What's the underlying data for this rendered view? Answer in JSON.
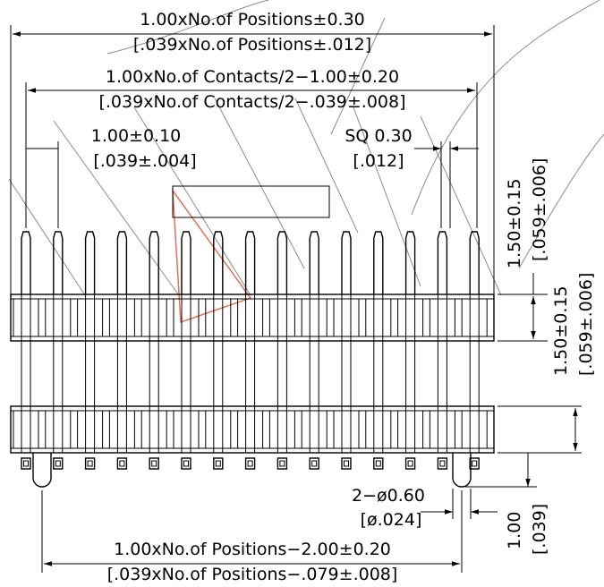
{
  "dimensions": {
    "overall_length": {
      "metric": "1.00xNo.of Positions±0.30",
      "imperial": "[.039xNo.of Positions±.012]"
    },
    "contacts_span": {
      "metric": "1.00xNo.of Contacts/2−1.00±0.20",
      "imperial": "[.039xNo.of Contacts/2−.039±.008]"
    },
    "pitch": {
      "metric": "1.00±0.10",
      "imperial": "[.039±.004]"
    },
    "pin_square": {
      "metric": "SQ 0.30",
      "imperial": "[.012]"
    },
    "pin_top_height": {
      "metric": "1.50±0.15",
      "imperial": "[.059±.006]"
    },
    "body_height": {
      "metric": "1.50±0.15",
      "imperial": "[.059±.006]"
    },
    "peg_diameter": {
      "metric": "2−ø0.60",
      "imperial": "[ø.024]"
    },
    "peg_offset": {
      "metric": "1.00",
      "imperial": "[.039]"
    },
    "peg_span": {
      "metric": "1.00xNo.of Positions−2.00±0.20",
      "imperial": "[.039xNo.of Positions−.079±.008]"
    }
  },
  "drawing": {
    "pin_count": 15,
    "colors": {
      "line": "#000000",
      "watermark": "#8a8a9a",
      "accent": "#e2705a"
    }
  }
}
